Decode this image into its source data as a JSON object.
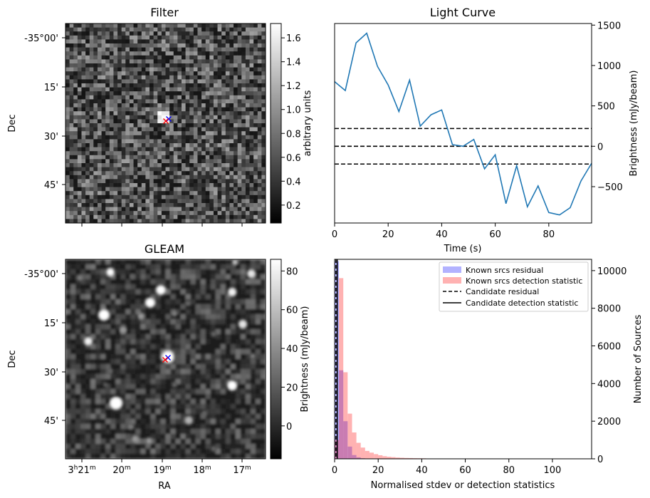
{
  "chart_data": [
    {
      "type": "heatmap",
      "title": "Filter",
      "xlabel": "",
      "ylabel": "Dec",
      "y_tick_labels": [
        "-35°00'",
        "15'",
        "30'",
        "45'"
      ],
      "colorbar": {
        "label": "arbitrary units",
        "ticks": [
          0.2,
          0.4,
          0.6,
          0.8,
          1.0,
          1.2,
          1.4,
          1.6
        ],
        "range": [
          0.05,
          1.72
        ]
      },
      "markers": [
        {
          "symbol": "x",
          "color": "#0000ff"
        },
        {
          "symbol": "x",
          "color": "#ff0000"
        }
      ]
    },
    {
      "type": "line",
      "title": "Light Curve",
      "xlabel": "Time (s)",
      "ylabel": "Brightness (mJy/beam)",
      "xlim": [
        0,
        96
      ],
      "ylim": [
        -950,
        1520
      ],
      "x_ticks": [
        0,
        20,
        40,
        60,
        80
      ],
      "y_ticks": [
        -500,
        0,
        500,
        1000,
        1500
      ],
      "x": [
        0,
        4,
        8,
        12,
        16,
        20,
        24,
        28,
        32,
        36,
        40,
        44,
        48,
        52,
        56,
        60,
        64,
        68,
        72,
        76,
        80,
        84,
        88,
        92,
        96
      ],
      "values": [
        800,
        690,
        1280,
        1400,
        990,
        760,
        430,
        820,
        250,
        390,
        450,
        20,
        0,
        85,
        -280,
        -105,
        -710,
        -240,
        -750,
        -490,
        -820,
        -850,
        -760,
        -430,
        -210
      ],
      "hlines": [
        220,
        0,
        -220
      ]
    },
    {
      "type": "heatmap",
      "title": "GLEAM",
      "xlabel": "RA",
      "ylabel": "Dec",
      "x_tick_labels": [
        "3h21m",
        "20m",
        "19m",
        "18m",
        "17m"
      ],
      "y_tick_labels": [
        "-35°00'",
        "15'",
        "30'",
        "45'"
      ],
      "colorbar": {
        "label": "Brightness (mJy/beam)",
        "ticks": [
          0,
          20,
          40,
          60,
          80
        ],
        "range": [
          -17,
          86
        ]
      },
      "markers": [
        {
          "symbol": "x",
          "color": "#0000ff"
        },
        {
          "symbol": "x",
          "color": "#ff0000"
        }
      ]
    },
    {
      "type": "bar",
      "xlabel": "Normalised stdev or detection statistics",
      "ylabel": "Number of Sources",
      "xlim": [
        0,
        118
      ],
      "ylim": [
        0,
        10600
      ],
      "x_ticks": [
        0,
        20,
        40,
        60,
        80,
        100
      ],
      "y_ticks": [
        0,
        2000,
        4000,
        6000,
        8000,
        10000
      ],
      "bin_width": 2,
      "series": [
        {
          "name": "Known srcs residual",
          "color": "#0000ff",
          "x": [
            0,
            2,
            4,
            6,
            8,
            10,
            12,
            14
          ],
          "values": [
            10500,
            4700,
            2000,
            650,
            200,
            80,
            30,
            10
          ]
        },
        {
          "name": "Known srcs detection statistic",
          "color": "#ff0000",
          "x": [
            0,
            2,
            4,
            6,
            8,
            10,
            12,
            14,
            16,
            18,
            20,
            22,
            24,
            26,
            28,
            30,
            32,
            34,
            36,
            38,
            40,
            44,
            48,
            52,
            56,
            60,
            64,
            68,
            72,
            76,
            80,
            90,
            100,
            110
          ],
          "values": [
            1000,
            9600,
            4600,
            2400,
            1400,
            850,
            600,
            420,
            330,
            250,
            190,
            140,
            110,
            90,
            70,
            55,
            45,
            40,
            35,
            30,
            25,
            20,
            18,
            15,
            12,
            10,
            10,
            10,
            8,
            6,
            5,
            5,
            4,
            3
          ]
        }
      ],
      "vlines": [
        {
          "name": "Candidate residual",
          "x": 0.6,
          "style": "dashed"
        },
        {
          "name": "Candidate detection statistic",
          "x": 1.2,
          "style": "solid"
        }
      ]
    }
  ]
}
